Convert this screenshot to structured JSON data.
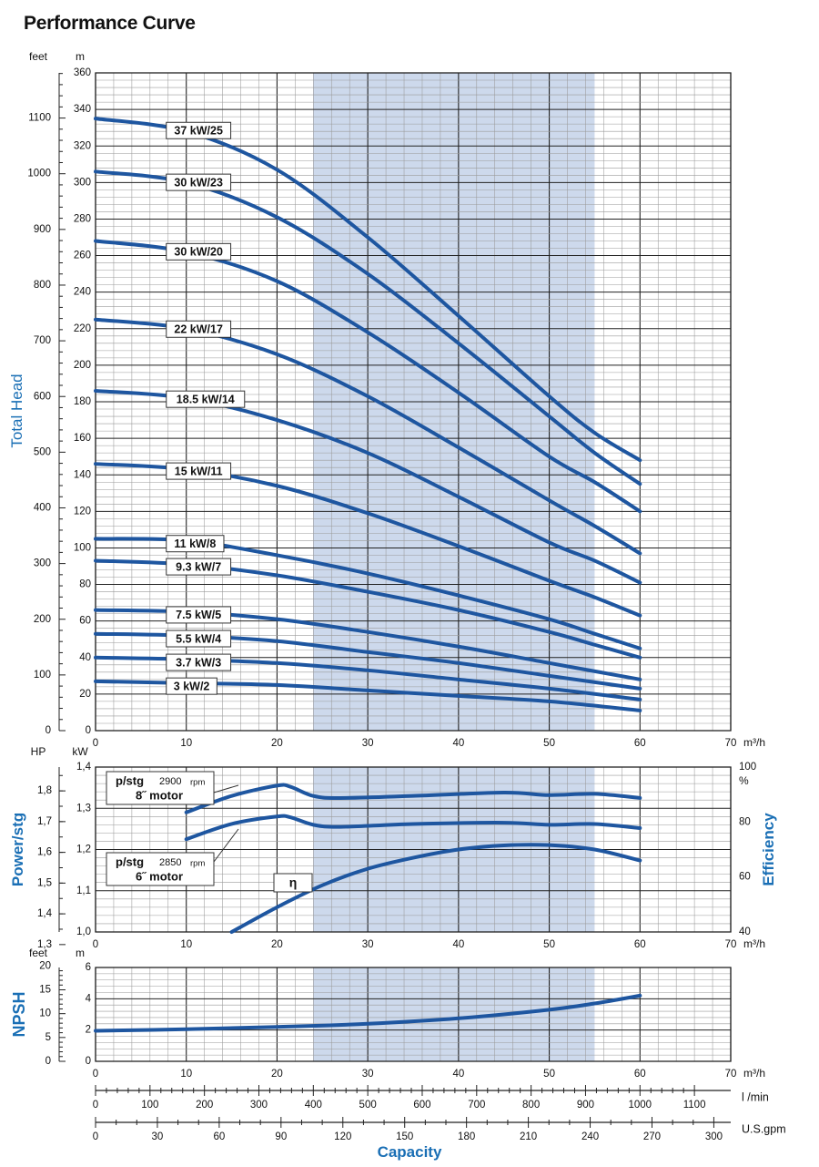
{
  "title": "Performance Curve",
  "colors": {
    "curve": "#1e56a0",
    "band": "#cdd9ec",
    "grid_minor": "#9a9a9a",
    "grid_major": "#222222",
    "axis_label": "#1a6fb5"
  },
  "chart_data": [
    {
      "type": "line",
      "name": "head",
      "x_unit": "m³/h",
      "xlim": [
        0,
        70
      ],
      "x_ticks": [
        0,
        10,
        20,
        30,
        40,
        50,
        60,
        70
      ],
      "y_left_unit": "feet",
      "y_left_ticks": [
        0,
        100,
        200,
        300,
        400,
        500,
        600,
        700,
        800,
        900,
        1000,
        1100
      ],
      "y_unit": "m",
      "ylim": [
        0,
        360
      ],
      "y_ticks": [
        0,
        20,
        40,
        60,
        80,
        100,
        120,
        140,
        160,
        180,
        200,
        220,
        240,
        260,
        280,
        300,
        320,
        340,
        360
      ],
      "ylabel": "Total Head",
      "shaded_range": [
        24,
        55
      ],
      "grid": true,
      "series": [
        {
          "name": "37 kW/25",
          "x": [
            0,
            10,
            20,
            30,
            40,
            50,
            55,
            60
          ],
          "y": [
            335,
            328,
            307,
            270,
            227,
            183,
            163,
            148
          ]
        },
        {
          "name": "30 kW/23",
          "x": [
            0,
            10,
            20,
            30,
            40,
            50,
            55,
            60
          ],
          "y": [
            306,
            300,
            281,
            250,
            212,
            172,
            152,
            135
          ]
        },
        {
          "name": "30 kW/20",
          "x": [
            0,
            10,
            20,
            30,
            40,
            50,
            55,
            60
          ],
          "y": [
            268,
            262,
            246,
            218,
            185,
            150,
            136,
            120
          ]
        },
        {
          "name": "22 kW/17",
          "x": [
            0,
            10,
            20,
            30,
            40,
            50,
            55,
            60
          ],
          "y": [
            225,
            220,
            206,
            183,
            155,
            126,
            112,
            97
          ]
        },
        {
          "name": "18.5 kW/14",
          "x": [
            0,
            10,
            20,
            30,
            40,
            50,
            55,
            60
          ],
          "y": [
            186,
            182,
            170,
            152,
            128,
            103,
            93,
            81
          ]
        },
        {
          "name": "15 kW/11",
          "x": [
            0,
            10,
            20,
            30,
            40,
            50,
            55,
            60
          ],
          "y": [
            146,
            143,
            134,
            119,
            101,
            82,
            73,
            63
          ]
        },
        {
          "name": "11 kW/8",
          "x": [
            0,
            10,
            20,
            30,
            40,
            50,
            55,
            60
          ],
          "y": [
            105,
            104,
            96,
            86,
            74,
            61,
            53,
            45
          ]
        },
        {
          "name": "9.3 kW/7",
          "x": [
            0,
            10,
            20,
            30,
            40,
            50,
            55,
            60
          ],
          "y": [
            93,
            91,
            85,
            76,
            66,
            54,
            47,
            40
          ]
        },
        {
          "name": "7.5 kW/5",
          "x": [
            0,
            10,
            20,
            30,
            40,
            50,
            60
          ],
          "y": [
            66,
            65,
            61,
            54,
            46,
            37,
            28
          ]
        },
        {
          "name": "5.5 kW/4",
          "x": [
            0,
            10,
            20,
            30,
            40,
            50,
            60
          ],
          "y": [
            53,
            52,
            49,
            43,
            37,
            30,
            23
          ]
        },
        {
          "name": "3.7 kW/3",
          "x": [
            0,
            10,
            20,
            30,
            40,
            50,
            60
          ],
          "y": [
            40,
            39,
            37,
            33,
            28,
            23,
            17
          ]
        },
        {
          "name": "3 kW/2",
          "x": [
            0,
            10,
            20,
            30,
            40,
            50,
            60
          ],
          "y": [
            27,
            26,
            25,
            22,
            19,
            16,
            11
          ]
        }
      ]
    },
    {
      "type": "line",
      "name": "power-efficiency",
      "x_unit": "m³/h",
      "xlim": [
        0,
        70
      ],
      "x_ticks": [
        0,
        10,
        20,
        30,
        40,
        50,
        60,
        70
      ],
      "y_left_unit": "HP",
      "y_left_ticks": [
        "1,3",
        "1,4",
        "1,5",
        "1,6",
        "1,7",
        "1,8"
      ],
      "y_unit": "kW",
      "ylim": [
        1.0,
        1.4
      ],
      "y_ticks": [
        "1,0",
        "1,1",
        "1,2",
        "1,3",
        "1,4"
      ],
      "ylabel": "Power/stg",
      "y2label": "Efficiency",
      "y2_unit": "%",
      "y2lim": [
        40,
        100
      ],
      "y2_ticks": [
        "40",
        "60",
        "80",
        "100"
      ],
      "shaded_range": [
        24,
        55
      ],
      "series": [
        {
          "name": "p/stg 2900 rpm 8˝ motor",
          "label_line1": "p/stg",
          "label_rpm": "2900",
          "label_rpm_unit": "rpm",
          "label_line2": "8˝ motor",
          "x": [
            10,
            15,
            20,
            21.5,
            24,
            27,
            35,
            45,
            50,
            55,
            60
          ],
          "y": [
            1.29,
            1.33,
            1.355,
            1.352,
            1.33,
            1.325,
            1.33,
            1.338,
            1.332,
            1.335,
            1.325
          ]
        },
        {
          "name": "p/stg 2850 rpm 6˝ motor",
          "label_line1": "p/stg",
          "label_rpm": "2850",
          "label_rpm_unit": "rpm",
          "label_line2": "6˝ motor",
          "x": [
            10,
            15,
            20,
            21.5,
            24,
            27,
            35,
            45,
            50,
            55,
            60
          ],
          "y": [
            1.225,
            1.262,
            1.28,
            1.278,
            1.26,
            1.255,
            1.262,
            1.265,
            1.26,
            1.262,
            1.252
          ]
        },
        {
          "name": "η",
          "axis": "right",
          "x": [
            15,
            20,
            25,
            30,
            35,
            40,
            45,
            50,
            55,
            60
          ],
          "y": [
            40,
            49,
            57,
            63,
            67,
            70,
            71.5,
            71.6,
            70,
            66
          ]
        }
      ]
    },
    {
      "type": "line",
      "name": "npsh",
      "x_unit": "m³/h",
      "xlim": [
        0,
        70
      ],
      "x_ticks": [
        0,
        10,
        20,
        30,
        40,
        50,
        60,
        70
      ],
      "y_left_unit": "feet",
      "y_left_ticks": [
        0,
        5,
        10,
        15,
        20
      ],
      "y_unit": "m",
      "ylim": [
        0,
        6
      ],
      "y_ticks": [
        0,
        2,
        4,
        6
      ],
      "ylabel": "NPSH",
      "shaded_range": [
        24,
        55
      ],
      "series": [
        {
          "x": [
            0,
            10,
            20,
            30,
            40,
            50,
            55,
            60
          ],
          "y": [
            1.95,
            2.05,
            2.2,
            2.4,
            2.75,
            3.3,
            3.7,
            4.2
          ]
        }
      ]
    }
  ],
  "capacity_scales": {
    "xlabel": "Capacity",
    "lmin": {
      "unit": "l /min",
      "ticks": [
        0,
        100,
        200,
        300,
        400,
        500,
        600,
        700,
        800,
        900,
        1000,
        1100
      ]
    },
    "usgpm": {
      "unit": "U.S.gpm",
      "ticks": [
        0,
        30,
        60,
        90,
        120,
        150,
        180,
        210,
        240,
        270,
        300
      ]
    }
  }
}
